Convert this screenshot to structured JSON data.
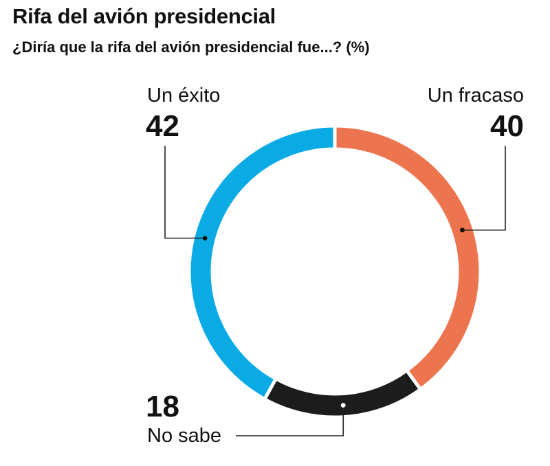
{
  "header": {
    "title": "Rifa del avión presidencial",
    "subtitle": "¿Diría que la rifa del avión presidencial fue...? (%)"
  },
  "colors": {
    "exito": "#0AABE4",
    "fracaso": "#EC7550",
    "no_sabe": "#1C1C1C",
    "leader": "#222222",
    "text": "#111111"
  },
  "chart_data": {
    "type": "pie",
    "variant": "donut",
    "title": "Rifa del avión presidencial",
    "subtitle": "¿Diría que la rifa del avión presidencial fue...? (%)",
    "unit": "%",
    "order": "clockwise from top: Un fracaso, No sabe, Un éxito",
    "series": [
      {
        "key": "fracaso",
        "label": "Un fracaso",
        "value": 40,
        "value_text": "40",
        "label_position": "top-right"
      },
      {
        "key": "no_sabe",
        "label": "No sabe",
        "value": 18,
        "value_text": "18",
        "label_position": "bottom-left"
      },
      {
        "key": "exito",
        "label": "Un éxito",
        "value": 42,
        "value_text": "42",
        "label_position": "top-left"
      }
    ]
  }
}
